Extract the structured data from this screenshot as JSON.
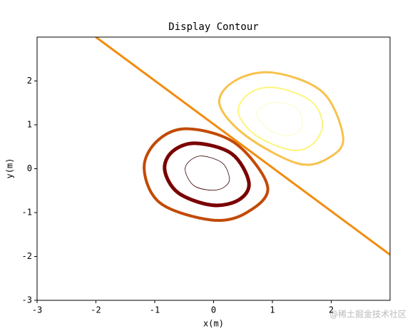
{
  "chart_data": {
    "type": "contour",
    "title": "Display Contour",
    "x_label": "x(m)",
    "y_label": "y(m)",
    "xlim": [
      -3,
      3
    ],
    "ylim": [
      -3,
      3
    ],
    "xticks": [
      -3,
      -2,
      -1,
      0,
      1,
      2
    ],
    "yticks": [
      -3,
      -2,
      -1,
      0,
      1,
      2
    ],
    "series": [
      {
        "color": "#f28c0f",
        "linewidth": 3,
        "closed": false,
        "x": [
          -2,
          3
        ],
        "y": [
          3,
          -1.96
        ]
      },
      {
        "color": "#c24a05",
        "linewidth": 4,
        "closed": true,
        "x": [
          -0.45,
          0.37,
          0.92,
          0.55,
          -0.03,
          -0.9,
          -1.18,
          -0.96
        ],
        "y": [
          0.91,
          0.58,
          -0.42,
          -1.01,
          -1.17,
          -0.79,
          0,
          0.63
        ]
      },
      {
        "color": "#7a0000",
        "linewidth": 5,
        "closed": true,
        "x": [
          -0.3,
          0.31,
          0.6,
          0.43,
          -0.03,
          -0.6,
          -0.83,
          -0.7
        ],
        "y": [
          0.58,
          0.34,
          -0.31,
          -0.71,
          -0.83,
          -0.55,
          -0.03,
          0.39
        ]
      },
      {
        "color": "#3a0000",
        "linewidth": 0.8,
        "closed": true,
        "x": [
          -0.2,
          0.15,
          0.27,
          0.18,
          -0.02,
          -0.33,
          -0.48,
          -0.42
        ],
        "y": [
          0.29,
          0.13,
          -0.23,
          -0.42,
          -0.49,
          -0.39,
          -0.06,
          0.16
        ]
      },
      {
        "color": "#f7c24c",
        "linewidth": 3,
        "closed": true,
        "x": [
          1.01,
          1.85,
          2.2,
          2.01,
          1.46,
          0.55,
          0.1,
          0.37
        ],
        "y": [
          2.19,
          1.75,
          0.75,
          0.29,
          0.11,
          0.75,
          1.48,
          2.01
        ]
      },
      {
        "color": "#fcf57c",
        "linewidth": 2,
        "closed": true,
        "x": [
          1.04,
          1.64,
          1.85,
          1.7,
          1.34,
          0.73,
          0.42,
          0.61
        ],
        "y": [
          1.85,
          1.56,
          1.04,
          0.58,
          0.42,
          0.75,
          1.28,
          1.72
        ]
      },
      {
        "color": "#fdfbc6",
        "linewidth": 1,
        "closed": true,
        "x": [
          1.07,
          1.4,
          1.51,
          1.44,
          1.22,
          0.92,
          0.73,
          0.85
        ],
        "y": [
          1.51,
          1.39,
          1.07,
          0.84,
          0.75,
          0.91,
          1.23,
          1.43
        ]
      }
    ]
  },
  "watermark": "@稀土掘金技术社区"
}
